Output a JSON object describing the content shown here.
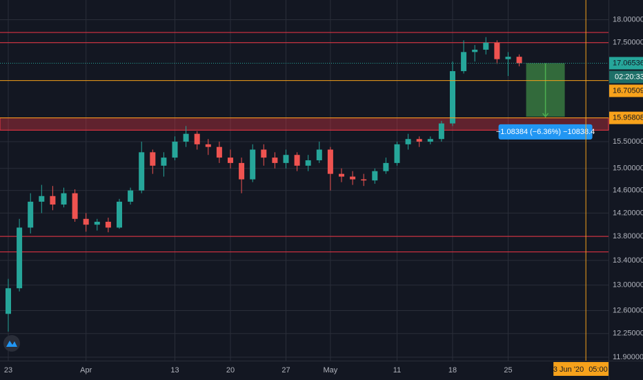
{
  "chart_data": {
    "type": "candlestick",
    "categories": [
      "23",
      null,
      null,
      null,
      null,
      null,
      null,
      "Apr",
      null,
      null,
      null,
      null,
      null,
      null,
      null,
      "13",
      null,
      null,
      null,
      null,
      "20",
      null,
      null,
      null,
      null,
      "27",
      null,
      null,
      null,
      "May",
      null,
      null,
      null,
      null,
      null,
      "11",
      null,
      null,
      null,
      null,
      "18",
      null,
      null,
      null,
      null,
      "25",
      null
    ],
    "open": [
      12.55,
      12.95,
      13.95,
      14.4,
      14.5,
      14.35,
      14.55,
      14.1,
      14.0,
      14.05,
      13.95,
      14.4,
      14.6,
      15.3,
      15.05,
      15.2,
      15.5,
      15.65,
      15.45,
      15.4,
      15.2,
      15.1,
      14.8,
      15.35,
      15.2,
      15.1,
      15.25,
      15.05,
      15.15,
      15.35,
      14.9,
      14.85,
      14.8,
      14.78,
      14.95,
      15.1,
      15.45,
      15.55,
      15.5,
      15.55,
      15.85,
      16.9,
      17.3,
      17.35,
      17.5,
      17.15,
      17.2
    ],
    "high": [
      13.1,
      14.1,
      14.55,
      14.7,
      14.68,
      14.65,
      14.62,
      14.2,
      14.1,
      14.12,
      14.45,
      14.65,
      15.5,
      15.35,
      15.3,
      15.6,
      15.8,
      15.7,
      15.55,
      15.5,
      15.35,
      15.2,
      15.45,
      15.45,
      15.3,
      15.35,
      15.3,
      15.25,
      15.5,
      15.4,
      15.0,
      14.95,
      14.9,
      15.0,
      15.2,
      15.5,
      15.65,
      15.6,
      15.6,
      15.9,
      17.1,
      17.55,
      17.45,
      17.62,
      17.55,
      17.3,
      17.25
    ],
    "low": [
      12.28,
      12.9,
      13.85,
      14.2,
      14.25,
      14.3,
      14.05,
      13.88,
      13.9,
      13.87,
      13.93,
      14.35,
      14.55,
      14.9,
      14.85,
      15.15,
      15.4,
      15.35,
      15.25,
      15.1,
      15.0,
      14.55,
      14.75,
      15.05,
      15.0,
      15.0,
      14.95,
      14.95,
      15.1,
      14.6,
      14.75,
      14.7,
      14.68,
      14.72,
      14.9,
      15.05,
      15.35,
      15.4,
      15.45,
      15.5,
      15.8,
      16.85,
      17.1,
      17.25,
      17.05,
      16.8,
      17.0
    ],
    "close": [
      12.95,
      13.95,
      14.4,
      14.5,
      14.35,
      14.55,
      14.1,
      14.0,
      14.05,
      13.95,
      14.4,
      14.6,
      15.3,
      15.05,
      15.2,
      15.5,
      15.65,
      15.45,
      15.4,
      15.2,
      15.1,
      14.8,
      15.35,
      15.2,
      15.1,
      15.25,
      15.05,
      15.15,
      15.35,
      14.9,
      14.85,
      14.8,
      14.78,
      14.95,
      15.1,
      15.45,
      15.55,
      15.5,
      15.55,
      15.85,
      16.9,
      17.3,
      17.35,
      17.5,
      17.15,
      17.2,
      17.06536
    ],
    "up_color": "#26a69a",
    "down_color": "#ef5350",
    "ylim": [
      11.85,
      18.44
    ],
    "log_scale": true,
    "grid": true,
    "yticks": [
      {
        "value": 18,
        "label": "18.00000"
      },
      {
        "value": 17.5,
        "label": "17.50000"
      },
      {
        "value": 15.5,
        "label": "15.50000"
      },
      {
        "value": 15,
        "label": "15.00000"
      },
      {
        "value": 14.6,
        "label": "14.60000"
      },
      {
        "value": 14.2,
        "label": "14.20000"
      },
      {
        "value": 13.8,
        "label": "13.80000"
      },
      {
        "value": 13.4,
        "label": "13.40000"
      },
      {
        "value": 13,
        "label": "13.00000"
      },
      {
        "value": 12.6,
        "label": "12.60000"
      },
      {
        "value": 12.25,
        "label": "12.25000"
      },
      {
        "value": 11.9,
        "label": "11.90000"
      }
    ],
    "levels": [
      17.72,
      17.5,
      13.8,
      13.54
    ],
    "level_color": "#f23645",
    "zone": [
      15.72,
      15.96
    ],
    "price_lines": [
      {
        "value": 17.06536,
        "label": "17.06536",
        "color": "#26a69a",
        "style": "dotted"
      },
      {
        "value": 16.70509,
        "label": "16.70509",
        "color": "#f7a21b",
        "style": "solid"
      },
      {
        "value": 15.95808,
        "label": "15.95808",
        "color": "#f7a21b",
        "style": "solid"
      }
    ],
    "countdown": "02:20:33",
    "measure": {
      "from": 17.06536,
      "to": 15.98152,
      "label": "−1.08384 (−6.36%) −10838.4"
    },
    "crosshair": {
      "date": "03 Jun '20",
      "time": "05:00"
    }
  }
}
